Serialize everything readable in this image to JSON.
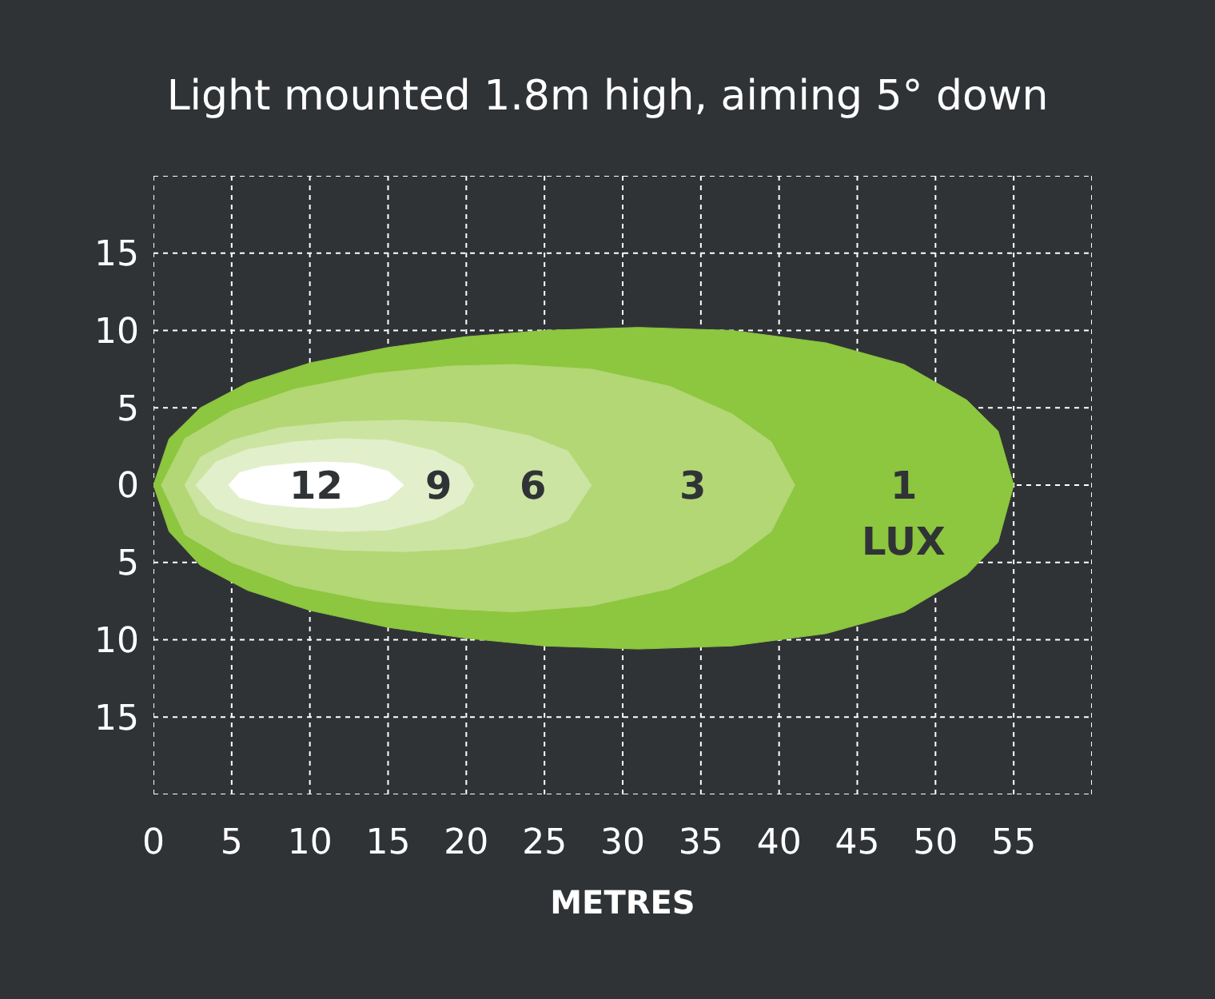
{
  "chart_data": {
    "type": "area",
    "title": "Light mounted 1.8m high, aiming 5° down",
    "xlabel": "METRES",
    "xlim": [
      0,
      60
    ],
    "xticks": [
      0,
      5,
      10,
      15,
      20,
      25,
      30,
      35,
      40,
      45,
      50,
      55,
      {
        "value": 60,
        "label": null
      }
    ],
    "ylim": [
      -20,
      20
    ],
    "yticks": [
      {
        "value": -20,
        "label": null
      },
      {
        "value": -15,
        "label": "15"
      },
      {
        "value": -10,
        "label": "10"
      },
      {
        "value": -5,
        "label": "5"
      },
      0,
      5,
      10,
      15,
      {
        "value": 20,
        "label": null
      }
    ],
    "grid": true,
    "line_style": "dotted",
    "series": [
      {
        "name": "1",
        "color": "#8dc63f",
        "x": [
          0,
          1,
          3,
          6,
          10,
          15,
          20,
          25,
          31,
          37,
          43,
          48,
          52,
          54,
          55
        ],
        "values": [
          0,
          3,
          5,
          6.6,
          7.9,
          8.9,
          9.6,
          10,
          10.2,
          10,
          9.2,
          7.8,
          5.5,
          3.5,
          0
        ]
      },
      {
        "color": "#8dc63f",
        "x": [
          0,
          1,
          3,
          6,
          10,
          15,
          20,
          25,
          31,
          37,
          43,
          48,
          52,
          54,
          55
        ],
        "values": [
          0,
          -3,
          -5.2,
          -6.8,
          -8.1,
          -9.2,
          -9.9,
          -10.4,
          -10.6,
          -10.4,
          -9.6,
          -8.2,
          -5.8,
          -3.7,
          0
        ]
      },
      {
        "name": "3",
        "color": "#b3d774",
        "x": [
          0.5,
          2,
          5,
          9,
          14,
          19,
          23,
          28,
          33,
          37,
          39.5,
          41
        ],
        "values": [
          0,
          3,
          4.8,
          6.2,
          7.2,
          7.7,
          7.8,
          7.5,
          6.4,
          4.6,
          2.8,
          0
        ]
      },
      {
        "color": "#b3d774",
        "x": [
          0.5,
          2,
          5,
          9,
          14,
          19,
          23,
          28,
          33,
          37,
          39.5,
          41
        ],
        "values": [
          0,
          -3.2,
          -5,
          -6.5,
          -7.5,
          -8,
          -8.2,
          -7.8,
          -6.7,
          -4.9,
          -3,
          0
        ]
      },
      {
        "name": "6",
        "color": "#cce4a2",
        "x": [
          2,
          3,
          5,
          8,
          12,
          16,
          20,
          24,
          26.5,
          28
        ],
        "values": [
          0,
          1.8,
          2.9,
          3.7,
          4.1,
          4.2,
          4,
          3.2,
          2.2,
          0
        ]
      },
      {
        "color": "#cce4a2",
        "x": [
          2,
          3,
          5,
          8,
          12,
          16,
          20,
          24,
          26.5,
          28
        ],
        "values": [
          0,
          -1.9,
          -3,
          -3.8,
          -4.2,
          -4.3,
          -4.1,
          -3.3,
          -2.3,
          0
        ]
      },
      {
        "name": "9",
        "color": "#e2efcb",
        "x": [
          2.7,
          4,
          6,
          9,
          12,
          15,
          18,
          19.8,
          20.5
        ],
        "values": [
          0,
          1.5,
          2.3,
          2.8,
          3,
          2.9,
          2.2,
          1.2,
          0
        ]
      },
      {
        "color": "#e2efcb",
        "x": [
          2.7,
          4,
          6,
          9,
          12,
          15,
          18,
          19.8,
          20.5
        ],
        "values": [
          0,
          -1.5,
          -2.3,
          -2.8,
          -3,
          -2.9,
          -2.2,
          -1.2,
          0
        ]
      },
      {
        "name": "12",
        "color": "#ffffff",
        "x": [
          4.8,
          5.5,
          7,
          9,
          11,
          13,
          15,
          16
        ],
        "values": [
          0,
          0.8,
          1.2,
          1.4,
          1.5,
          1.4,
          0.9,
          0
        ]
      },
      {
        "color": "#ffffff",
        "x": [
          4.8,
          5.5,
          7,
          9,
          11,
          13,
          15,
          16
        ],
        "values": [
          0,
          -0.8,
          -1.2,
          -1.4,
          -1.5,
          -1.4,
          -0.9,
          0
        ]
      }
    ],
    "annotations": [
      "LUX"
    ]
  }
}
